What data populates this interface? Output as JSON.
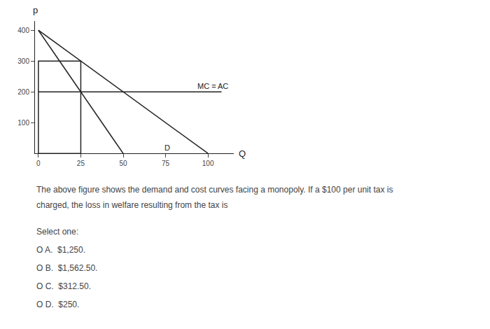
{
  "chart_data": {
    "type": "line",
    "color": "#222222",
    "grid": false,
    "x_label": "Q",
    "y_label": "p",
    "xlim": [
      -2,
      115
    ],
    "ylim": [
      0,
      430
    ],
    "xticks": [
      0,
      25,
      50,
      75,
      100
    ],
    "yticks": [
      100,
      200,
      300,
      400
    ],
    "series": [
      {
        "x": [
          0,
          100
        ],
        "values": [
          400,
          0
        ]
      },
      {
        "x": [
          0,
          50
        ],
        "values": [
          400,
          0
        ]
      },
      {
        "x": [
          0,
          108
        ],
        "values": [
          200,
          200
        ]
      }
    ],
    "rectangle": {
      "x": 0,
      "y": 0,
      "width": 25,
      "height": 300
    },
    "annotations": [
      {
        "text": "MC = AC",
        "x": 93,
        "y": 200
      },
      {
        "text": "D",
        "x": 76,
        "y": 18
      }
    ],
    "question": [
      "The above figure shows the demand and cost curves facing a monopoly. If a $100 per unit tax is",
      "charged, the loss in welfare resulting from the tax is"
    ],
    "select_text": "Select one:",
    "options": [
      "O A.  $1,250.",
      "O B.  $1,562.50.",
      "O C.  $312.50.",
      "O D.  $250."
    ]
  }
}
